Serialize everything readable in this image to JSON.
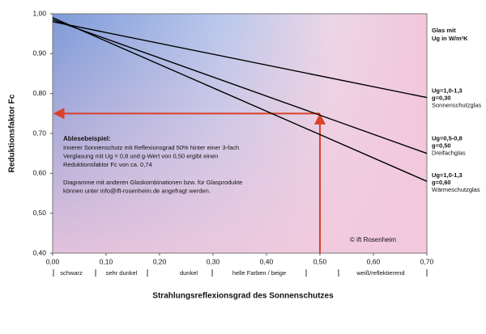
{
  "chart_data": {
    "type": "line",
    "x_label": "Strahlungsreflexionsgrad des Sonnenschutzes",
    "y_label": "Reduktionsfaktor Fc",
    "x": [
      0,
      0.7
    ],
    "xlim": [
      0,
      0.7
    ],
    "ylim": [
      0.4,
      1.0
    ],
    "xticks": [
      {
        "value": 0,
        "label": "0,00"
      },
      {
        "value": 0.1,
        "label": "0,10"
      },
      {
        "value": 0.2,
        "label": "0,20"
      },
      {
        "value": 0.3,
        "label": "0,30"
      },
      {
        "value": 0.4,
        "label": "0,40"
      },
      {
        "value": 0.5,
        "label": "0,50"
      },
      {
        "value": 0.6,
        "label": "0,60"
      },
      {
        "value": 0.7,
        "label": "0,70"
      }
    ],
    "yticks": [
      {
        "value": 0.4,
        "label": "0,40"
      },
      {
        "value": 0.5,
        "label": "0,50"
      },
      {
        "value": 0.6,
        "label": "0,60"
      },
      {
        "value": 0.7,
        "label": "0,70"
      },
      {
        "value": 0.8,
        "label": "0,80"
      },
      {
        "value": 0.9,
        "label": "0,90"
      },
      {
        "value": 1.0,
        "label": "1,00"
      }
    ],
    "reflection_classes": [
      "schwarz",
      "sehr dunkel",
      "dunkel",
      "helle Farben / beige",
      "weiß/reflektierend"
    ],
    "legend_title": [
      "Glas mit",
      "Ug  in W/m²K"
    ],
    "series": [
      {
        "ug": "Ug=1,0-1,3",
        "g": "g=0,30",
        "glass": "Sonnenschutzglas",
        "color": "#000000",
        "values": [
          0.98,
          0.79
        ]
      },
      {
        "ug": "Ug=0,5-0,8",
        "g": "g=0,50",
        "glass": "Dreifachglas",
        "color": "#000000",
        "values": [
          0.985,
          0.65
        ]
      },
      {
        "ug": "Ug=1,0-1,3",
        "g": "g=0,60",
        "glass": "Wärmeschutzglas",
        "color": "#000000",
        "values": [
          0.99,
          0.58
        ]
      }
    ],
    "reference": {
      "x": 0.5,
      "y": 0.75,
      "color": "#d9412b"
    },
    "example_title": "Ablesebeispiel:",
    "example_lines": [
      "Innerer Sonnenschutz mit Reflexionsgrad 50% hinter einer 3-fach",
      "Verglasung mit Ug = 0,8 und g-Wert von 0,50 ergibt einen",
      "Reduktionsfaktor Fc von ca. 0,74"
    ],
    "contact_lines": [
      "Diagramme mit anderen Glaskombinationen bzw. für Glasprodukte",
      "können unter info@ift-rosenheim.de angefragt werden."
    ],
    "copyright": "© ift Rosenheim"
  }
}
